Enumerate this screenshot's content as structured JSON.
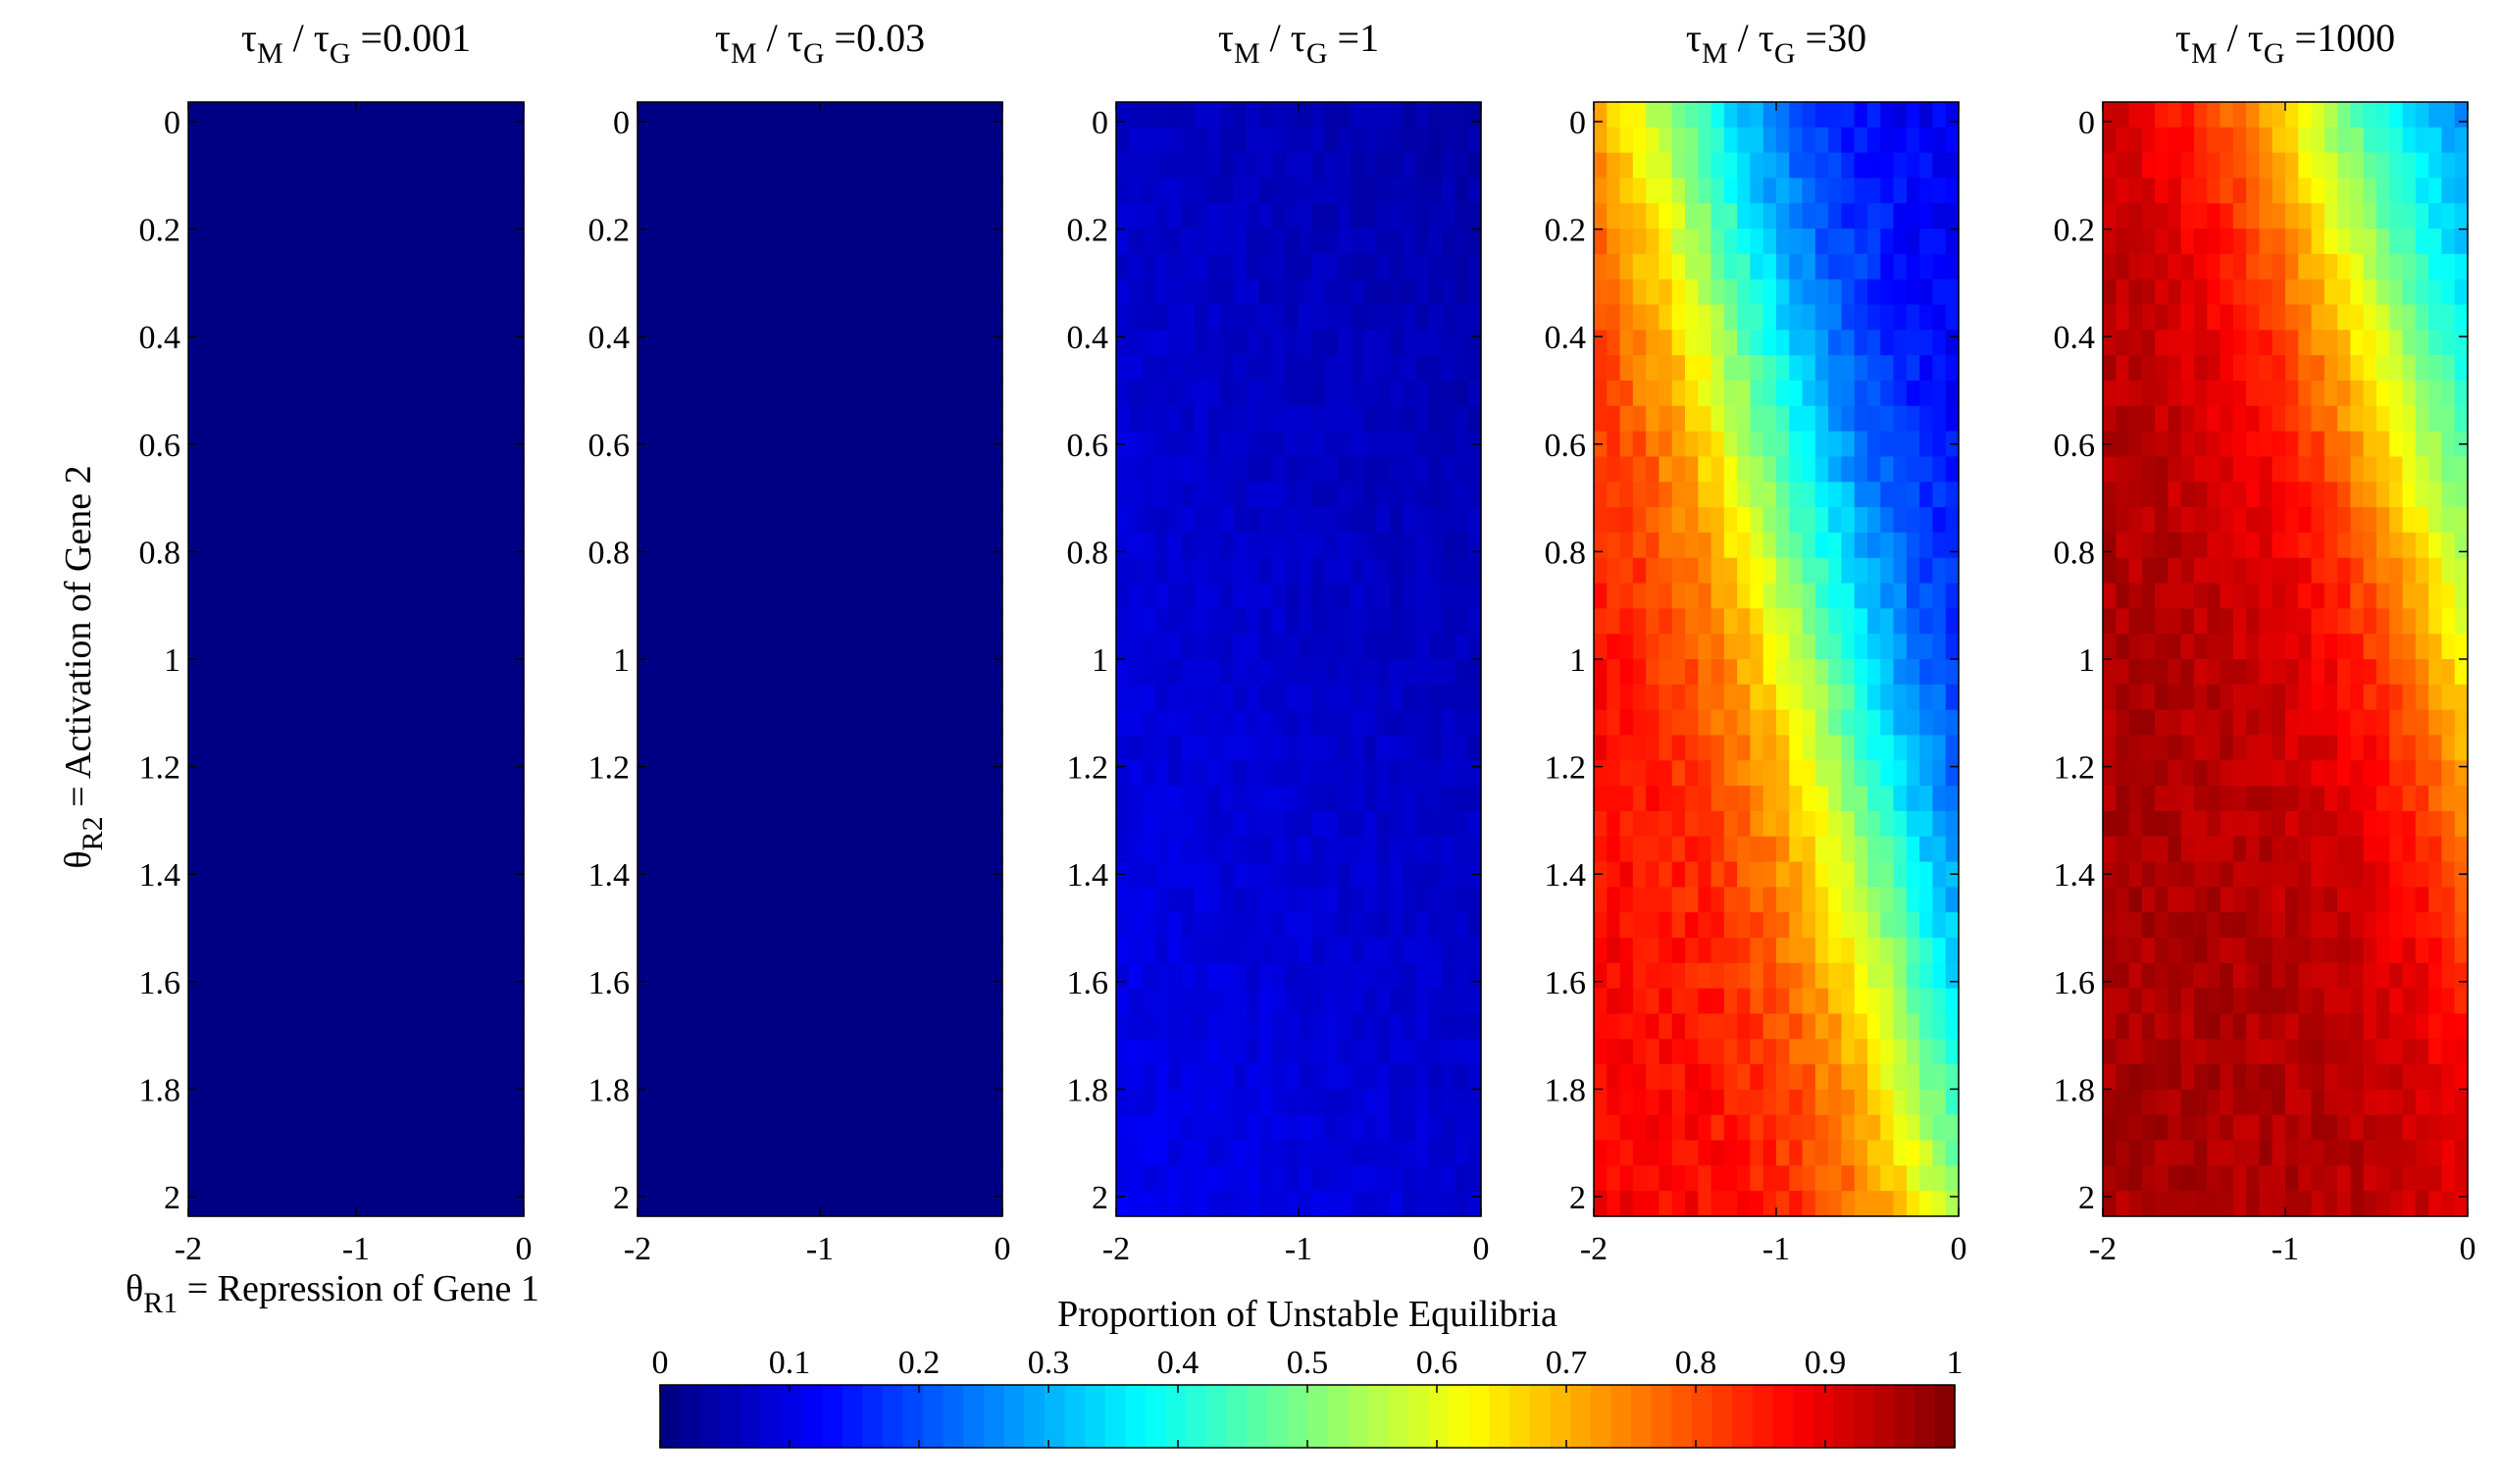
{
  "chart_data": {
    "type": "heatmap",
    "xlabel": {
      "symbol": "θ",
      "sub": "R1",
      "text": " = Repression of Gene 1"
    },
    "ylabel": {
      "symbol": "θ",
      "sub": "R2",
      "text": " = Activation of Gene 2"
    },
    "xlim": [
      -2,
      0
    ],
    "ylim": [
      0,
      2
    ],
    "y_direction": "reversed (0 at top, 2 at bottom)",
    "x_ticks": [
      "-2",
      "-1",
      "0"
    ],
    "y_ticks": [
      "0",
      "0.2",
      "0.4",
      "0.6",
      "0.8",
      "1",
      "1.2",
      "1.4",
      "1.6",
      "1.8",
      "2"
    ],
    "grid": false,
    "colorbar": {
      "title": "Proportion of Unstable Equilibria",
      "position": "bottom",
      "colormap": "jet",
      "range": [
        0,
        1
      ],
      "ticks": [
        "0",
        "0.1",
        "0.2",
        "0.3",
        "0.4",
        "0.5",
        "0.6",
        "0.7",
        "0.8",
        "0.9",
        "1"
      ]
    },
    "panels": [
      {
        "title": {
          "a": "τ",
          "asub": "M",
          "sep": " / ",
          "b": "τ",
          "bsub": "G",
          "value": " =0.001"
        },
        "ratio": 0.001,
        "description_values": {
          "min": 0.0,
          "max": 0.0
        }
      },
      {
        "title": {
          "a": "τ",
          "asub": "M",
          "sep": " / ",
          "b": "τ",
          "bsub": "G",
          "value": " =0.03"
        },
        "ratio": 0.03,
        "description_values": {
          "min": 0.0,
          "max": 0.0
        }
      },
      {
        "title": {
          "a": "τ",
          "asub": "M",
          "sep": " / ",
          "b": "τ",
          "bsub": "G",
          "value": " =1"
        },
        "ratio": 1,
        "description_values": {
          "min": 0.02,
          "max": 0.12
        }
      },
      {
        "title": {
          "a": "τ",
          "asub": "M",
          "sep": " / ",
          "b": "τ",
          "bsub": "G",
          "value": " =30"
        },
        "ratio": 30,
        "description_values": {
          "min": 0.1,
          "max": 0.92
        }
      },
      {
        "title": {
          "a": "τ",
          "asub": "M",
          "sep": " / ",
          "b": "τ",
          "bsub": "G",
          "value": " =1000"
        },
        "ratio": 1000,
        "description_values": {
          "min": 0.25,
          "max": 0.97
        }
      }
    ]
  }
}
